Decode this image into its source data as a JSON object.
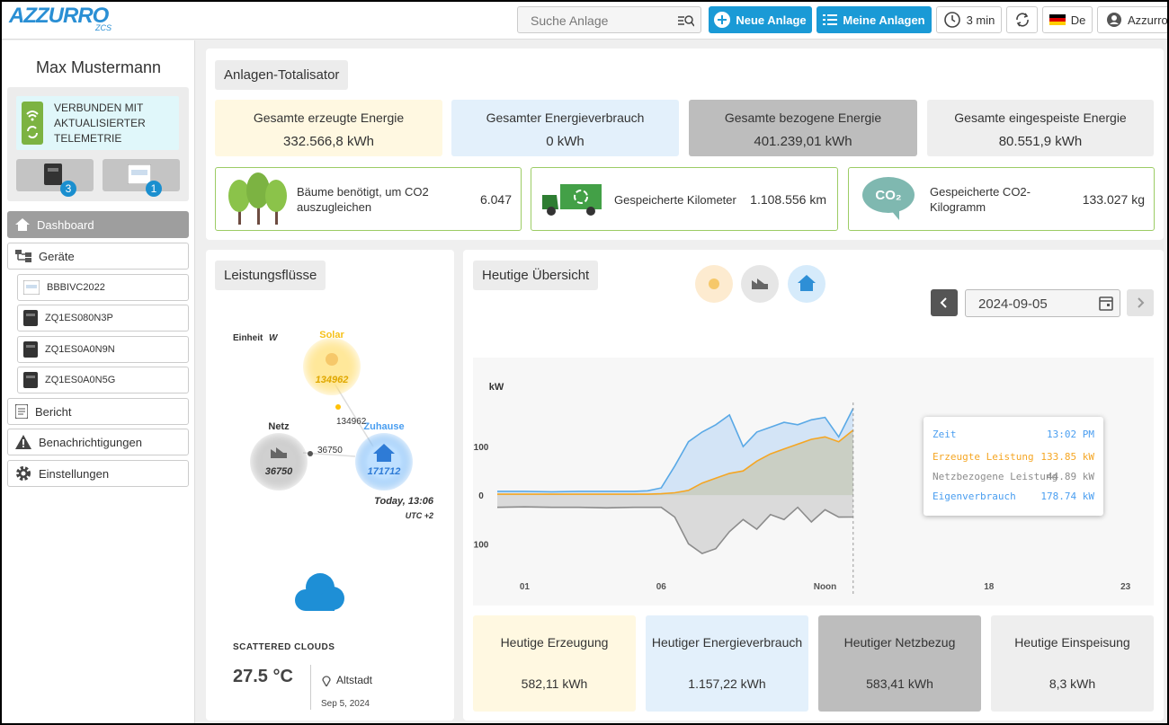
{
  "header": {
    "logo": "AZZURRO",
    "logo_sub": "ZCS",
    "search_placeholder": "Suche Anlage",
    "new_plant": "Neue Anlage",
    "my_plants": "Meine Anlagen",
    "refresh": "3 min",
    "language": "De",
    "user": "Azzurro"
  },
  "sidebar": {
    "user_name": "Max Mustermann",
    "status": "VERBUNDEN MIT AKTUALISIERTER TELEMETRIE",
    "inverter_count": "3",
    "meter_count": "1",
    "nav": [
      "Dashboard",
      "Geräte",
      "Bericht",
      "Benachrichtigungen",
      "Einstellungen"
    ],
    "devices": [
      "BBBIVC2022",
      "ZQ1ES080N3P",
      "ZQ1ES0A0N9N",
      "ZQ1ES0A0N5G"
    ]
  },
  "totalizer": {
    "title": "Anlagen-Totalisator",
    "stats": [
      {
        "label": "Gesamte erzeugte Energie",
        "value": "332.566,8 kWh"
      },
      {
        "label": "Gesamter Energieverbrauch",
        "value": "0 kWh"
      },
      {
        "label": "Gesamte bezogene Energie",
        "value": "401.239,01 kWh"
      },
      {
        "label": "Gesamte eingespeiste Energie",
        "value": "80.551,9 kWh"
      }
    ],
    "eco": [
      {
        "label": "Bäume benötigt, um CO2 auszugleichen",
        "value": "6.047"
      },
      {
        "label": "Gespeicherte Kilometer",
        "value": "1.108.556 km"
      },
      {
        "label": "Gespeicherte CO2-Kilogramm",
        "value": "133.027 kg"
      }
    ]
  },
  "power_flow": {
    "title": "Leistungsflüsse",
    "unit_label": "Einheit",
    "unit": "W",
    "solar": {
      "label": "Solar",
      "value": "134962"
    },
    "grid": {
      "label": "Netz",
      "value": "36750"
    },
    "home": {
      "label": "Zuhause",
      "value": "171712"
    },
    "solar_to_home": "134962",
    "grid_to_home": "36750",
    "time": "Today, 13:06",
    "timezone": "UTC +2",
    "weather": "SCATTERED CLOUDS",
    "temperature": "27.5 °C",
    "location": "Altstadt",
    "date": "Sep 5, 2024"
  },
  "overview": {
    "title": "Heutige Übersicht",
    "date": "2024-09-05",
    "chart": {
      "type": "area",
      "y_label": "kW",
      "x": [
        0,
        1,
        2,
        3,
        4,
        5,
        5.5,
        6,
        6.5,
        7,
        7.5,
        8,
        8.5,
        9,
        9.5,
        10,
        10.5,
        11,
        11.5,
        12,
        12.5,
        13.03
      ],
      "series": [
        {
          "name": "Eigenverbrauch",
          "color": "#5aa9e6",
          "area_color": "#c9def5",
          "values": [
            8,
            8,
            7,
            8,
            8,
            8,
            9,
            15,
            60,
            110,
            130,
            145,
            165,
            100,
            130,
            140,
            150,
            145,
            155,
            160,
            120,
            178.74
          ]
        },
        {
          "name": "Netzbezogene Leistung",
          "color": "#8c8c8c",
          "area_color": "#d2d2d2",
          "values": [
            -25,
            -24,
            -25,
            -25,
            -26,
            -25,
            -25,
            -25,
            -45,
            -100,
            -120,
            -110,
            -75,
            -50,
            -70,
            -40,
            -50,
            -25,
            -55,
            -30,
            -45,
            -44.89
          ]
        },
        {
          "name": "Erzeugte Leistung",
          "color": "#f5a623",
          "area_color": "#c8c9b8",
          "values": [
            2,
            2,
            2,
            2,
            2,
            2,
            2,
            3,
            5,
            10,
            25,
            35,
            45,
            50,
            70,
            85,
            95,
            105,
            115,
            120,
            110,
            133.85
          ]
        }
      ],
      "xlim": [
        0,
        24
      ],
      "xticks": [
        {
          "value": 1,
          "label": "01"
        },
        {
          "value": 6,
          "label": "06"
        },
        {
          "value": 12,
          "label": "Noon"
        },
        18,
        23
      ],
      "ylim": [
        -190,
        200
      ],
      "yticks": [
        100,
        0,
        {
          "value": -100,
          "label": "100"
        }
      ],
      "tooltip": {
        "time_label": "Zeit",
        "time": "13:02 PM",
        "values": [
          "133.85 kW",
          "44.89 kW",
          "178.74 kW"
        ]
      }
    },
    "summary": [
      {
        "label": "Heutige Erzeugung",
        "value": "582,11 kWh"
      },
      {
        "label": "Heutiger Energieverbrauch",
        "value": "1.157,22 kWh"
      },
      {
        "label": "Heutiger Netzbezug",
        "value": "583,41 kWh"
      },
      {
        "label": "Heutige Einspeisung",
        "value": "8,3 kWh"
      }
    ]
  }
}
